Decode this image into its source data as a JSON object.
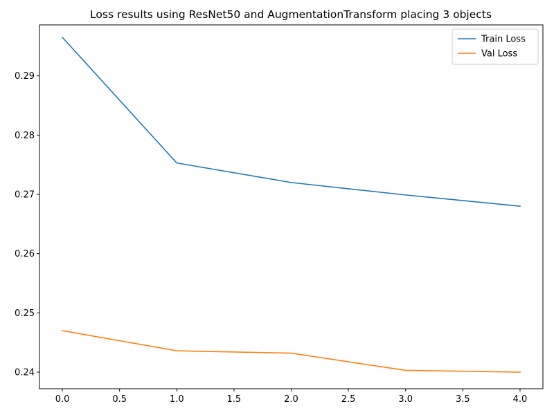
{
  "chart_data": {
    "type": "line",
    "title": "Loss results using ResNet50 and AugmentationTransform placing 3 objects",
    "xlabel": "",
    "ylabel": "",
    "x": [
      0,
      1,
      2,
      3,
      4
    ],
    "xlim": [
      -0.2,
      4.2
    ],
    "ylim": [
      0.2372,
      0.2986
    ],
    "xticks": [
      0.0,
      0.5,
      1.0,
      1.5,
      2.0,
      2.5,
      3.0,
      3.5,
      4.0
    ],
    "xtick_labels": [
      "0.0",
      "0.5",
      "1.0",
      "1.5",
      "2.0",
      "2.5",
      "3.0",
      "3.5",
      "4.0"
    ],
    "yticks": [
      0.24,
      0.25,
      0.26,
      0.27,
      0.28,
      0.29
    ],
    "ytick_labels": [
      "0.24",
      "0.25",
      "0.26",
      "0.27",
      "0.28",
      "0.29"
    ],
    "grid": false,
    "legend_position": "top-right",
    "series": [
      {
        "name": "Train Loss",
        "color": "#1f77b4",
        "values": [
          0.2965,
          0.2753,
          0.272,
          0.2699,
          0.268
        ]
      },
      {
        "name": "Val Loss",
        "color": "#ff7f0e",
        "values": [
          0.247,
          0.2436,
          0.2432,
          0.2403,
          0.24
        ]
      }
    ]
  }
}
